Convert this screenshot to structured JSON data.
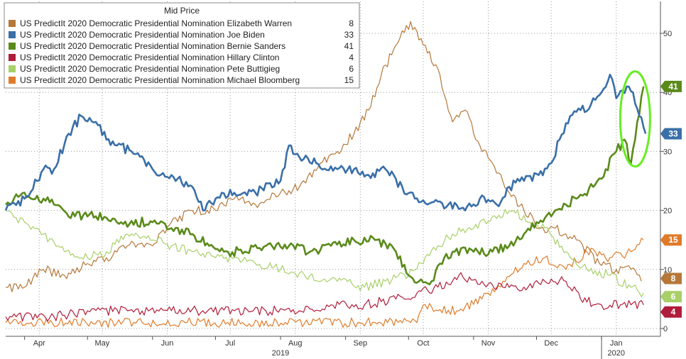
{
  "chart_data": {
    "type": "line",
    "legend_title": "Mid Price",
    "legend_placement": "top-left",
    "grid": true,
    "ylim": [
      0,
      55
    ],
    "y_ticks": [
      0,
      10,
      20,
      30,
      40,
      50
    ],
    "y_tick_labels": [
      "0",
      "10",
      "20",
      "30",
      "40",
      "50"
    ],
    "x_range": [
      "2019-03-23",
      "2020-01-25"
    ],
    "x_ticks": [
      {
        "label": "Apr",
        "date": "2019-04-08"
      },
      {
        "label": "May",
        "date": "2019-05-08"
      },
      {
        "label": "Jun",
        "date": "2019-06-08"
      },
      {
        "label": "Jul",
        "date": "2019-07-08"
      },
      {
        "label": "Aug",
        "date": "2019-08-08"
      },
      {
        "label": "Sep",
        "date": "2019-09-08"
      },
      {
        "label": "Oct",
        "date": "2019-10-08"
      },
      {
        "label": "Nov",
        "date": "2019-11-08"
      },
      {
        "label": "Dec",
        "date": "2019-12-08"
      },
      {
        "label": "Jan",
        "date": "2020-01-08"
      }
    ],
    "year_labels": [
      {
        "label": "2019",
        "date": "2019-08-01"
      },
      {
        "label": "2020",
        "date": "2020-01-08"
      }
    ],
    "series": [
      {
        "name": "US PredictIt 2020 Democratic Presidential Nomination Elizabeth Warren",
        "last": "8",
        "color": "#b5783a",
        "points": [
          [
            "2019-03-23",
            7
          ],
          [
            "2019-04-01",
            7
          ],
          [
            "2019-04-10",
            10
          ],
          [
            "2019-04-20",
            9
          ],
          [
            "2019-05-01",
            11
          ],
          [
            "2019-05-10",
            12
          ],
          [
            "2019-05-20",
            14
          ],
          [
            "2019-06-01",
            14
          ],
          [
            "2019-06-10",
            18
          ],
          [
            "2019-06-20",
            20
          ],
          [
            "2019-07-01",
            20
          ],
          [
            "2019-07-10",
            22
          ],
          [
            "2019-07-20",
            21
          ],
          [
            "2019-08-01",
            23
          ],
          [
            "2019-08-10",
            24
          ],
          [
            "2019-08-20",
            28
          ],
          [
            "2019-08-28",
            30
          ],
          [
            "2019-09-05",
            33
          ],
          [
            "2019-09-12",
            37
          ],
          [
            "2019-09-18",
            43
          ],
          [
            "2019-09-25",
            48
          ],
          [
            "2019-10-02",
            52
          ],
          [
            "2019-10-08",
            48
          ],
          [
            "2019-10-15",
            44
          ],
          [
            "2019-10-22",
            35
          ],
          [
            "2019-10-28",
            37
          ],
          [
            "2019-11-04",
            31
          ],
          [
            "2019-11-10",
            28
          ],
          [
            "2019-11-18",
            23
          ],
          [
            "2019-11-25",
            20
          ],
          [
            "2019-12-03",
            17
          ],
          [
            "2019-12-10",
            17
          ],
          [
            "2019-12-20",
            15
          ],
          [
            "2019-12-31",
            11
          ],
          [
            "2020-01-08",
            10
          ],
          [
            "2020-01-15",
            10
          ],
          [
            "2020-01-20",
            8
          ]
        ]
      },
      {
        "name": "US PredictIt 2020 Democratic Presidential Nomination Joe Biden",
        "last": "33",
        "color": "#3a6fa8",
        "points": [
          [
            "2019-03-23",
            20
          ],
          [
            "2019-04-01",
            22
          ],
          [
            "2019-04-07",
            25
          ],
          [
            "2019-04-10",
            27
          ],
          [
            "2019-04-15",
            27
          ],
          [
            "2019-04-22",
            33
          ],
          [
            "2019-04-28",
            36
          ],
          [
            "2019-05-05",
            35
          ],
          [
            "2019-05-10",
            32
          ],
          [
            "2019-05-15",
            31
          ],
          [
            "2019-05-22",
            30
          ],
          [
            "2019-06-01",
            27
          ],
          [
            "2019-06-10",
            26
          ],
          [
            "2019-06-20",
            24
          ],
          [
            "2019-06-25",
            20
          ],
          [
            "2019-07-01",
            22
          ],
          [
            "2019-07-10",
            23
          ],
          [
            "2019-07-20",
            23
          ],
          [
            "2019-08-01",
            25
          ],
          [
            "2019-08-05",
            31
          ],
          [
            "2019-08-10",
            29
          ],
          [
            "2019-08-18",
            28
          ],
          [
            "2019-08-28",
            27
          ],
          [
            "2019-09-05",
            27
          ],
          [
            "2019-09-12",
            26
          ],
          [
            "2019-09-20",
            27
          ],
          [
            "2019-09-28",
            24
          ],
          [
            "2019-10-04",
            22
          ],
          [
            "2019-10-10",
            21
          ],
          [
            "2019-10-20",
            21
          ],
          [
            "2019-10-28",
            20
          ],
          [
            "2019-11-04",
            22
          ],
          [
            "2019-11-12",
            21
          ],
          [
            "2019-11-18",
            24
          ],
          [
            "2019-11-25",
            25
          ],
          [
            "2019-12-02",
            26
          ],
          [
            "2019-12-08",
            28
          ],
          [
            "2019-12-12",
            32
          ],
          [
            "2019-12-17",
            36
          ],
          [
            "2019-12-22",
            37
          ],
          [
            "2019-12-27",
            38
          ],
          [
            "2020-01-01",
            40
          ],
          [
            "2020-01-05",
            43
          ],
          [
            "2020-01-08",
            39
          ],
          [
            "2020-01-13",
            41
          ],
          [
            "2020-01-16",
            40
          ],
          [
            "2020-01-19",
            36
          ],
          [
            "2020-01-22",
            33
          ]
        ]
      },
      {
        "name": "US PredictIt 2020 Democratic Presidential Nomination Bernie Sanders",
        "last": "41",
        "color": "#5a8a1a",
        "points": [
          [
            "2019-03-23",
            21
          ],
          [
            "2019-04-01",
            23
          ],
          [
            "2019-04-10",
            22
          ],
          [
            "2019-04-15",
            21
          ],
          [
            "2019-04-25",
            19
          ],
          [
            "2019-05-05",
            19
          ],
          [
            "2019-05-15",
            18
          ],
          [
            "2019-06-01",
            18
          ],
          [
            "2019-06-10",
            17
          ],
          [
            "2019-06-20",
            16
          ],
          [
            "2019-06-28",
            14
          ],
          [
            "2019-07-05",
            13
          ],
          [
            "2019-07-15",
            13
          ],
          [
            "2019-07-25",
            14
          ],
          [
            "2019-08-05",
            14
          ],
          [
            "2019-08-15",
            13
          ],
          [
            "2019-08-25",
            14
          ],
          [
            "2019-09-05",
            15
          ],
          [
            "2019-09-15",
            15
          ],
          [
            "2019-09-25",
            13
          ],
          [
            "2019-10-01",
            9
          ],
          [
            "2019-10-06",
            8
          ],
          [
            "2019-10-12",
            8
          ],
          [
            "2019-10-16",
            11
          ],
          [
            "2019-10-22",
            13
          ],
          [
            "2019-11-01",
            13
          ],
          [
            "2019-11-10",
            13
          ],
          [
            "2019-11-18",
            14
          ],
          [
            "2019-11-25",
            16
          ],
          [
            "2019-12-01",
            18
          ],
          [
            "2019-12-08",
            19
          ],
          [
            "2019-12-15",
            21
          ],
          [
            "2019-12-20",
            22
          ],
          [
            "2019-12-28",
            24
          ],
          [
            "2020-01-03",
            27
          ],
          [
            "2020-01-08",
            30
          ],
          [
            "2020-01-12",
            32
          ],
          [
            "2020-01-15",
            28
          ],
          [
            "2020-01-18",
            35
          ],
          [
            "2020-01-21",
            41
          ]
        ]
      },
      {
        "name": "US PredictIt 2020 Democratic Presidential Nomination Hillary Clinton",
        "last": "4",
        "color": "#b01d3a",
        "points": [
          [
            "2019-03-23",
            2
          ],
          [
            "2019-04-15",
            2
          ],
          [
            "2019-05-01",
            3
          ],
          [
            "2019-05-20",
            3
          ],
          [
            "2019-06-10",
            3
          ],
          [
            "2019-06-25",
            3
          ],
          [
            "2019-07-10",
            3
          ],
          [
            "2019-07-25",
            3
          ],
          [
            "2019-08-10",
            3
          ],
          [
            "2019-08-25",
            4
          ],
          [
            "2019-09-10",
            4
          ],
          [
            "2019-09-25",
            5
          ],
          [
            "2019-10-05",
            6
          ],
          [
            "2019-10-15",
            7
          ],
          [
            "2019-10-25",
            9
          ],
          [
            "2019-11-05",
            8
          ],
          [
            "2019-11-15",
            7
          ],
          [
            "2019-11-25",
            7
          ],
          [
            "2019-12-05",
            8
          ],
          [
            "2019-12-15",
            8
          ],
          [
            "2019-12-22",
            5
          ],
          [
            "2020-01-01",
            4
          ],
          [
            "2020-01-10",
            4
          ],
          [
            "2020-01-21",
            4
          ]
        ]
      },
      {
        "name": "US PredictIt 2020 Democratic Presidential Nomination Pete Buttigieg",
        "last": "6",
        "color": "#a8d068",
        "points": [
          [
            "2019-03-23",
            20
          ],
          [
            "2019-04-01",
            18
          ],
          [
            "2019-04-10",
            16
          ],
          [
            "2019-04-20",
            13
          ],
          [
            "2019-05-01",
            12
          ],
          [
            "2019-05-10",
            13
          ],
          [
            "2019-05-20",
            16
          ],
          [
            "2019-06-01",
            15
          ],
          [
            "2019-06-10",
            14
          ],
          [
            "2019-06-20",
            13
          ],
          [
            "2019-07-01",
            12
          ],
          [
            "2019-07-10",
            12
          ],
          [
            "2019-07-20",
            11
          ],
          [
            "2019-08-01",
            10
          ],
          [
            "2019-08-15",
            9
          ],
          [
            "2019-08-28",
            8
          ],
          [
            "2019-09-10",
            7
          ],
          [
            "2019-09-20",
            8
          ],
          [
            "2019-10-01",
            9
          ],
          [
            "2019-10-08",
            11
          ],
          [
            "2019-10-15",
            14
          ],
          [
            "2019-10-22",
            16
          ],
          [
            "2019-11-01",
            17
          ],
          [
            "2019-11-10",
            19
          ],
          [
            "2019-11-20",
            20
          ],
          [
            "2019-11-28",
            18
          ],
          [
            "2019-12-05",
            17
          ],
          [
            "2019-12-15",
            13
          ],
          [
            "2019-12-25",
            10
          ],
          [
            "2020-01-05",
            9
          ],
          [
            "2020-01-15",
            7
          ],
          [
            "2020-01-21",
            6
          ]
        ]
      },
      {
        "name": "US PredictIt 2020 Democratic Presidential Nomination Michael Bloomberg",
        "last": "15",
        "color": "#e07b2a",
        "points": [
          [
            "2019-03-23",
            1
          ],
          [
            "2019-09-15",
            1
          ],
          [
            "2019-10-05",
            1
          ],
          [
            "2019-10-08",
            4
          ],
          [
            "2019-10-15",
            3
          ],
          [
            "2019-10-25",
            3
          ],
          [
            "2019-11-05",
            5
          ],
          [
            "2019-11-15",
            8
          ],
          [
            "2019-11-25",
            11
          ],
          [
            "2019-12-05",
            12
          ],
          [
            "2019-12-15",
            10
          ],
          [
            "2019-12-25",
            13
          ],
          [
            "2020-01-05",
            12
          ],
          [
            "2020-01-15",
            13
          ],
          [
            "2020-01-21",
            15
          ]
        ]
      }
    ]
  },
  "annotation": {
    "type": "ellipse",
    "color": "#66ee22",
    "description": "highlight"
  }
}
